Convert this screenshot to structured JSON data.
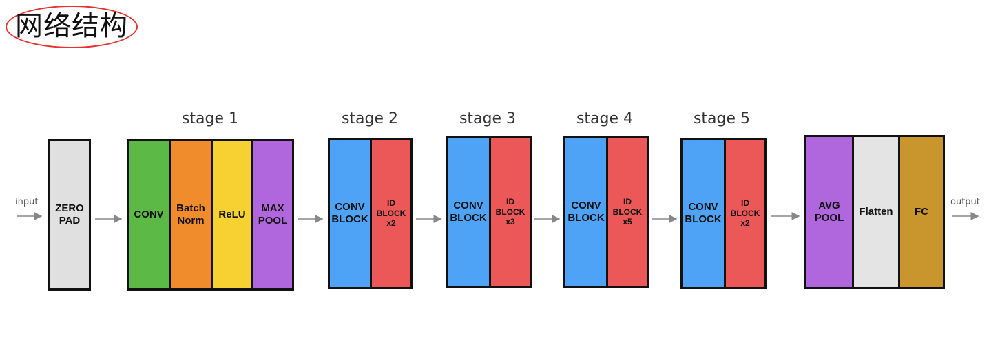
{
  "title": "网络结构",
  "io": {
    "input": "input",
    "output": "output"
  },
  "stages": {
    "s1": "stage 1",
    "s2": "stage 2",
    "s3": "stage 3",
    "s4": "stage 4",
    "s5": "stage 5"
  },
  "blocks": {
    "zero_pad": "ZERO\nPAD",
    "conv": "CONV",
    "batch_norm": "Batch\nNorm",
    "relu": "ReLU",
    "max_pool": "MAX\nPOOL",
    "s2_conv_block": "CONV\nBLOCK",
    "s2_id_block": "ID\nBLOCK\nx2",
    "s3_conv_block": "CONV\nBLOCK",
    "s3_id_block": "ID\nBLOCK\nx3",
    "s4_conv_block": "CONV\nBLOCK",
    "s4_id_block": "ID\nBLOCK\nx5",
    "s5_conv_block": "CONV\nBLOCK",
    "s5_id_block": "ID\nBLOCK\nx2",
    "avg_pool": "AVG\nPOOL",
    "flatten": "Flatten",
    "fc": "FC"
  },
  "colors": {
    "title_ellipse": "#e8302c",
    "zero_pad": "#e0e0e0",
    "conv": "#5cb946",
    "batch_norm": "#f08c2c",
    "relu": "#f5d132",
    "max_pool": "#b066dc",
    "conv_block": "#4fa3f7",
    "id_block": "#ec5758",
    "avg_pool": "#b066dc",
    "flatten": "#e4e4e4",
    "fc": "#c8962c",
    "arrow": "#888888"
  }
}
